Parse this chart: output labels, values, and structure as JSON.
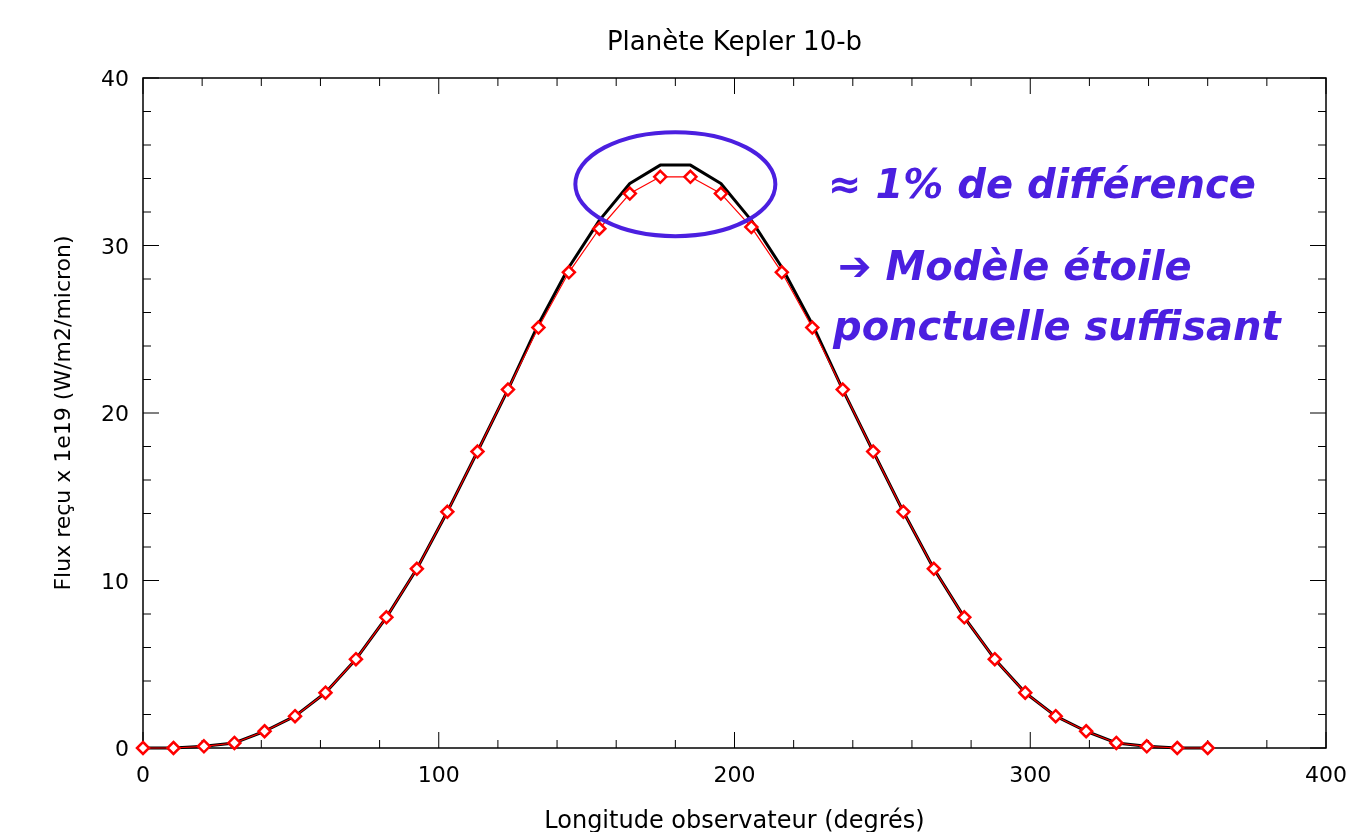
{
  "chart_data": {
    "type": "line",
    "title": "Planète Kepler 10-b",
    "xlabel": "Longitude observateur (degrés)",
    "ylabel": "Flux reçu x 1e19 (W/m2/micron)",
    "x": [
      0,
      10.3,
      20.6,
      30.9,
      41.1,
      51.4,
      61.7,
      72,
      82.3,
      92.6,
      102.9,
      113.1,
      123.4,
      133.7,
      144,
      154.3,
      164.6,
      174.9,
      185.1,
      195.4,
      205.7,
      216,
      226.3,
      236.6,
      246.9,
      257.1,
      267.4,
      277.7,
      288,
      298.3,
      308.6,
      318.9,
      329.1,
      339.4,
      349.7,
      360
    ],
    "series": [
      {
        "color": "#000000",
        "marker": "none",
        "values": [
          0,
          0,
          0.1,
          0.3,
          1.0,
          1.9,
          3.3,
          5.3,
          7.8,
          10.7,
          14.1,
          17.7,
          21.4,
          25.3,
          28.7,
          31.5,
          33.7,
          34.8,
          34.8,
          33.7,
          31.5,
          28.7,
          25.3,
          21.4,
          17.7,
          14.1,
          10.7,
          7.8,
          5.3,
          3.3,
          1.9,
          1.0,
          0.3,
          0.1,
          0,
          0
        ]
      },
      {
        "color": "#ff0000",
        "marker": "diamond",
        "values": [
          0,
          0,
          0.1,
          0.3,
          1.0,
          1.9,
          3.3,
          5.3,
          7.8,
          10.7,
          14.1,
          17.7,
          21.4,
          25.1,
          28.4,
          31.0,
          33.1,
          34.1,
          34.1,
          33.1,
          31.1,
          28.4,
          25.1,
          21.4,
          17.7,
          14.1,
          10.7,
          7.8,
          5.3,
          3.3,
          1.9,
          1.0,
          0.3,
          0.1,
          0,
          0
        ]
      }
    ],
    "xlim": [
      0,
      400
    ],
    "ylim": [
      0,
      40
    ],
    "xticks": [
      0,
      {
        "value": 20,
        "label": null
      },
      {
        "value": 40,
        "label": null
      },
      {
        "value": 60,
        "label": null
      },
      {
        "value": 80,
        "label": null
      },
      100,
      {
        "value": 120,
        "label": null
      },
      {
        "value": 140,
        "label": null
      },
      {
        "value": 160,
        "label": null
      },
      {
        "value": 180,
        "label": null
      },
      200,
      {
        "value": 220,
        "label": null
      },
      {
        "value": 240,
        "label": null
      },
      {
        "value": 260,
        "label": null
      },
      {
        "value": 280,
        "label": null
      },
      300,
      {
        "value": 320,
        "label": null
      },
      {
        "value": 340,
        "label": null
      },
      {
        "value": 360,
        "label": null
      },
      {
        "value": 380,
        "label": null
      },
      400
    ],
    "yticks": [
      0,
      {
        "value": 2,
        "label": null
      },
      {
        "value": 4,
        "label": null
      },
      {
        "value": 6,
        "label": null
      },
      {
        "value": 8,
        "label": null
      },
      10,
      {
        "value": 12,
        "label": null
      },
      {
        "value": 14,
        "label": null
      },
      {
        "value": 16,
        "label": null
      },
      {
        "value": 18,
        "label": null
      },
      20,
      {
        "value": 22,
        "label": null
      },
      {
        "value": 24,
        "label": null
      },
      {
        "value": 26,
        "label": null
      },
      {
        "value": 28,
        "label": null
      },
      30,
      {
        "value": 32,
        "label": null
      },
      {
        "value": 34,
        "label": null
      },
      {
        "value": 36,
        "label": null
      },
      {
        "value": 38,
        "label": null
      },
      40
    ],
    "grid": false,
    "annotations": [
      "≈ 1% de différence",
      "➔  Modèle étoile\nponctuelle suffisant"
    ]
  }
}
